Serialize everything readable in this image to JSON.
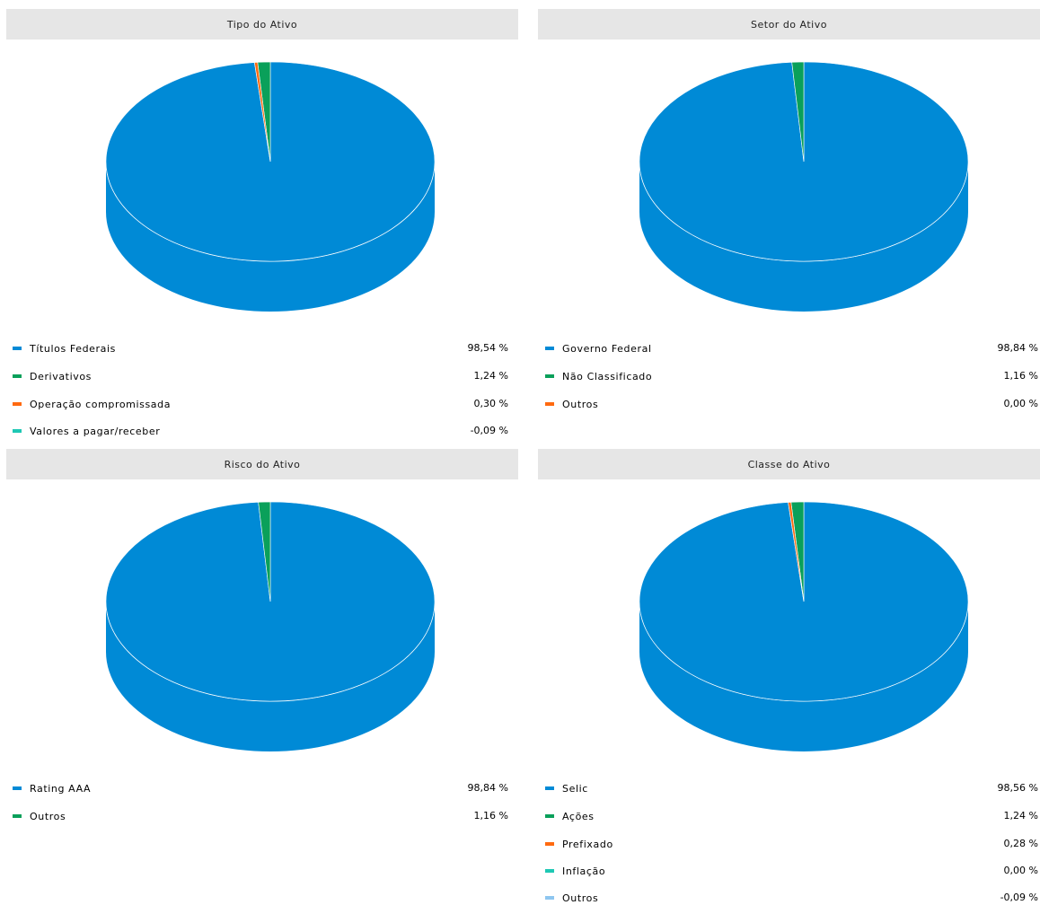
{
  "chart_data": [
    {
      "type": "pie",
      "title": "Tipo do Ativo",
      "series": [
        {
          "label": "Títulos Federais",
          "value": 98.54,
          "value_text": "98,54 %",
          "color": "#008ad6"
        },
        {
          "label": "Derivativos",
          "value": 1.24,
          "value_text": "1,24 %",
          "color": "#0aa05a"
        },
        {
          "label": "Operação compromissada",
          "value": 0.3,
          "value_text": "0,30 %",
          "color": "#ff6a10"
        },
        {
          "label": "Valores a pagar/receber",
          "value": -0.09,
          "value_text": "-0,09 %",
          "color": "#1ec8b4"
        }
      ]
    },
    {
      "type": "pie",
      "title": "Setor do Ativo",
      "series": [
        {
          "label": "Governo Federal",
          "value": 98.84,
          "value_text": "98,84 %",
          "color": "#008ad6"
        },
        {
          "label": "Não Classificado",
          "value": 1.16,
          "value_text": "1,16 %",
          "color": "#0aa05a"
        },
        {
          "label": "Outros",
          "value": 0.0,
          "value_text": "0,00 %",
          "color": "#ff6a10"
        }
      ]
    },
    {
      "type": "pie",
      "title": "Risco do Ativo",
      "series": [
        {
          "label": "Rating AAA",
          "value": 98.84,
          "value_text": "98,84 %",
          "color": "#008ad6"
        },
        {
          "label": "Outros",
          "value": 1.16,
          "value_text": "1,16 %",
          "color": "#0aa05a"
        }
      ]
    },
    {
      "type": "pie",
      "title": "Classe do Ativo",
      "series": [
        {
          "label": "Selic",
          "value": 98.56,
          "value_text": "98,56 %",
          "color": "#008ad6"
        },
        {
          "label": "Ações",
          "value": 1.24,
          "value_text": "1,24 %",
          "color": "#0aa05a"
        },
        {
          "label": "Prefixado",
          "value": 0.28,
          "value_text": "0,28 %",
          "color": "#ff6a10"
        },
        {
          "label": "Inflação",
          "value": 0.0,
          "value_text": "0,00 %",
          "color": "#1ec8b4"
        },
        {
          "label": "Outros",
          "value": -0.09,
          "value_text": "-0,09 %",
          "color": "#8ec6f0"
        }
      ]
    }
  ]
}
